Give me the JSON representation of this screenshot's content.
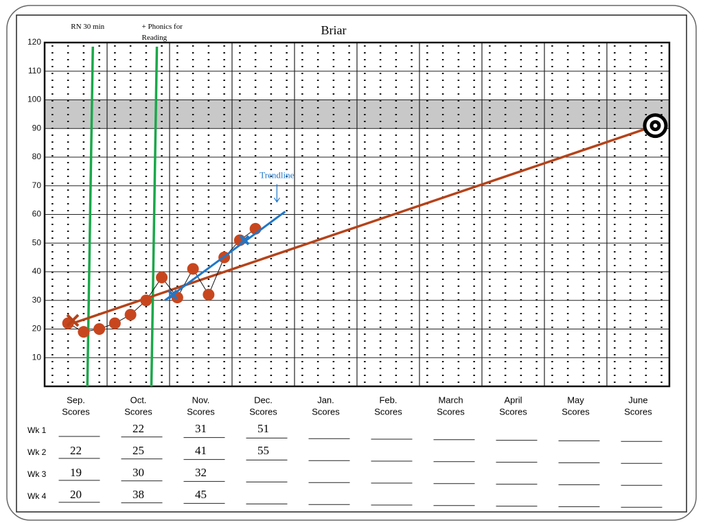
{
  "chart_data": {
    "type": "line",
    "title": "Briar",
    "ylim": [
      0,
      120
    ],
    "yticks": [
      10,
      20,
      30,
      40,
      50,
      60,
      70,
      80,
      90,
      100,
      110,
      120
    ],
    "xlim": [
      0,
      40
    ],
    "months": [
      "Sep.",
      "Oct.",
      "Nov.",
      "Dec.",
      "Jan.",
      "Feb.",
      "March",
      "April",
      "May",
      "June"
    ],
    "month_caption": "Scores",
    "goal_band": [
      90,
      100
    ],
    "series": [
      {
        "color": "#c8461e",
        "x": [
          1,
          2,
          3,
          4,
          5,
          6,
          7,
          8,
          9,
          10,
          11,
          12,
          13
        ],
        "values": [
          22,
          19,
          20,
          22,
          25,
          30,
          38,
          31,
          41,
          32,
          45,
          51,
          55
        ]
      }
    ],
    "aimline": {
      "color": "#b5431a",
      "x": [
        1.3,
        38.6
      ],
      "values": [
        22,
        91
      ]
    },
    "trendline": {
      "color": "#1f77c8",
      "x": [
        7.2,
        14.9
      ],
      "values": [
        30,
        61
      ],
      "label": "Trendline"
    },
    "baseline_marker": {
      "x": 1.3,
      "value": 23
    },
    "trend_markers": {
      "x": [
        7.7,
        12.3
      ],
      "values": [
        32,
        51
      ]
    },
    "interventions": [
      {
        "label": "RN 30 min",
        "x": 2.5,
        "color": "#1aa84a"
      },
      {
        "label": "+ Phonics for Reading",
        "x": 6.6,
        "color": "#1aa84a"
      }
    ]
  },
  "score_table": {
    "rows": [
      {
        "label": "Wk 1",
        "scores": [
          null,
          22,
          31,
          51
        ]
      },
      {
        "label": "Wk 2",
        "scores": [
          22,
          25,
          41,
          55
        ]
      },
      {
        "label": "Wk 3",
        "scores": [
          19,
          30,
          32,
          null
        ]
      },
      {
        "label": "Wk 4",
        "scores": [
          20,
          38,
          45,
          null
        ]
      }
    ]
  }
}
